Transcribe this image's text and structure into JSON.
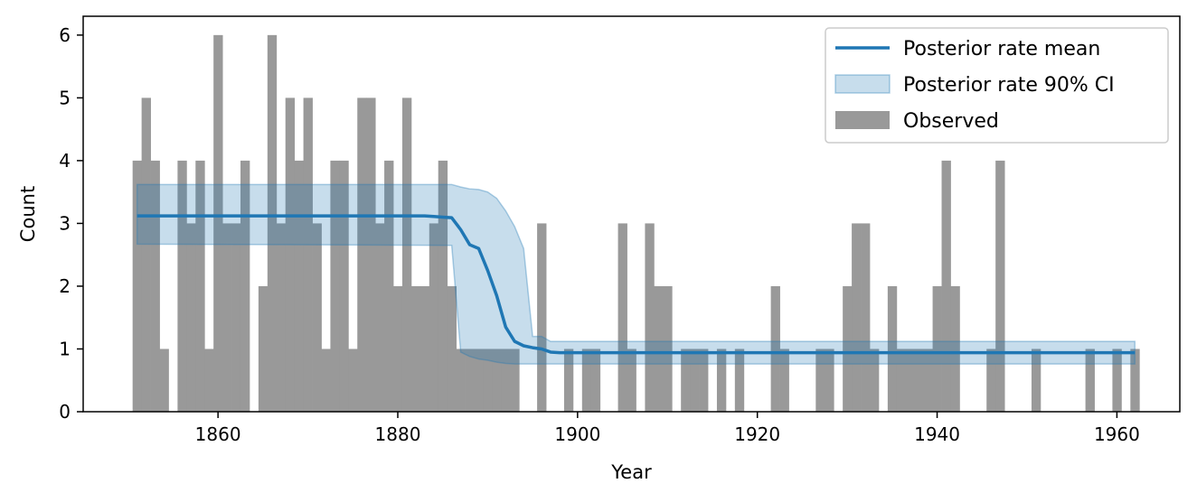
{
  "chart_data": {
    "type": "bar",
    "xlabel": "Year",
    "ylabel": "Count",
    "xlim": [
      1845,
      1967
    ],
    "ylim": [
      0,
      6.3
    ],
    "xticks": [
      1860,
      1880,
      1900,
      1920,
      1940,
      1960
    ],
    "yticks": [
      0,
      1,
      2,
      3,
      4,
      5,
      6
    ],
    "legend_position": "top-right",
    "grid": false,
    "colors": {
      "observed": "#999999",
      "mean": "#1f77b4",
      "ci": "#1f77b4"
    },
    "legend": {
      "mean": "Posterior rate mean",
      "ci": "Posterior rate 90% CI",
      "observed": "Observed"
    },
    "series": [
      {
        "name": "Observed",
        "type": "bar",
        "x": [
          1851,
          1852,
          1853,
          1854,
          1855,
          1856,
          1857,
          1858,
          1859,
          1860,
          1861,
          1862,
          1863,
          1864,
          1865,
          1866,
          1867,
          1868,
          1869,
          1870,
          1871,
          1872,
          1873,
          1874,
          1875,
          1876,
          1877,
          1878,
          1879,
          1880,
          1881,
          1882,
          1883,
          1884,
          1885,
          1886,
          1887,
          1888,
          1889,
          1890,
          1891,
          1892,
          1893,
          1894,
          1895,
          1896,
          1897,
          1898,
          1899,
          1900,
          1901,
          1902,
          1903,
          1904,
          1905,
          1906,
          1907,
          1908,
          1909,
          1910,
          1911,
          1912,
          1913,
          1914,
          1915,
          1916,
          1917,
          1918,
          1919,
          1920,
          1921,
          1922,
          1923,
          1924,
          1925,
          1926,
          1927,
          1928,
          1929,
          1930,
          1931,
          1932,
          1933,
          1934,
          1935,
          1936,
          1937,
          1938,
          1939,
          1940,
          1941,
          1942,
          1943,
          1944,
          1945,
          1946,
          1947,
          1948,
          1949,
          1950,
          1951,
          1952,
          1953,
          1954,
          1955,
          1956,
          1957,
          1958,
          1959,
          1960,
          1961,
          1962
        ],
        "values": [
          4,
          5,
          4,
          1,
          0,
          4,
          3,
          4,
          1,
          6,
          3,
          3,
          4,
          0,
          2,
          6,
          3,
          5,
          4,
          5,
          3,
          1,
          4,
          4,
          1,
          5,
          5,
          3,
          4,
          2,
          5,
          2,
          2,
          3,
          4,
          2,
          1,
          1,
          1,
          1,
          1,
          1,
          1,
          0,
          0,
          3,
          0,
          0,
          1,
          0,
          1,
          1,
          0,
          0,
          3,
          1,
          0,
          3,
          2,
          2,
          0,
          1,
          1,
          1,
          0,
          1,
          0,
          1,
          0,
          0,
          0,
          2,
          1,
          0,
          0,
          0,
          1,
          1,
          0,
          2,
          3,
          3,
          1,
          0,
          2,
          1,
          1,
          1,
          1,
          2,
          4,
          2,
          0,
          0,
          0,
          1,
          4,
          0,
          0,
          0,
          1,
          0,
          0,
          0,
          0,
          0,
          1,
          0,
          0,
          1,
          0,
          1
        ]
      },
      {
        "name": "Posterior rate mean",
        "type": "line",
        "x": [
          1851,
          1852,
          1853,
          1854,
          1855,
          1856,
          1857,
          1858,
          1859,
          1860,
          1861,
          1862,
          1863,
          1864,
          1865,
          1866,
          1867,
          1868,
          1869,
          1870,
          1871,
          1872,
          1873,
          1874,
          1875,
          1876,
          1877,
          1878,
          1879,
          1880,
          1881,
          1882,
          1883,
          1884,
          1885,
          1886,
          1887,
          1888,
          1889,
          1890,
          1891,
          1892,
          1893,
          1894,
          1895,
          1896,
          1897,
          1898,
          1899,
          1900,
          1910,
          1920,
          1930,
          1940,
          1950,
          1962
        ],
        "values": [
          3.12,
          3.12,
          3.12,
          3.12,
          3.12,
          3.12,
          3.12,
          3.12,
          3.12,
          3.12,
          3.12,
          3.12,
          3.12,
          3.12,
          3.12,
          3.12,
          3.12,
          3.12,
          3.12,
          3.12,
          3.12,
          3.12,
          3.12,
          3.12,
          3.12,
          3.12,
          3.12,
          3.12,
          3.12,
          3.12,
          3.12,
          3.12,
          3.12,
          3.11,
          3.1,
          3.09,
          2.9,
          2.66,
          2.6,
          2.25,
          1.85,
          1.35,
          1.12,
          1.05,
          1.02,
          1.0,
          0.95,
          0.94,
          0.94,
          0.94,
          0.94,
          0.94,
          0.94,
          0.94,
          0.94,
          0.94
        ]
      },
      {
        "name": "Posterior rate 90% CI",
        "type": "area",
        "x": [
          1851,
          1886,
          1887,
          1888,
          1889,
          1890,
          1891,
          1892,
          1893,
          1894,
          1895,
          1896,
          1897,
          1962
        ],
        "lower": [
          2.67,
          2.65,
          0.95,
          0.88,
          0.84,
          0.82,
          0.79,
          0.77,
          0.76,
          0.76,
          0.76,
          0.76,
          0.76,
          0.76
        ],
        "upper": [
          3.62,
          3.62,
          3.58,
          3.55,
          3.54,
          3.5,
          3.4,
          3.2,
          2.95,
          2.6,
          1.2,
          1.2,
          1.12,
          1.12
        ]
      }
    ]
  }
}
